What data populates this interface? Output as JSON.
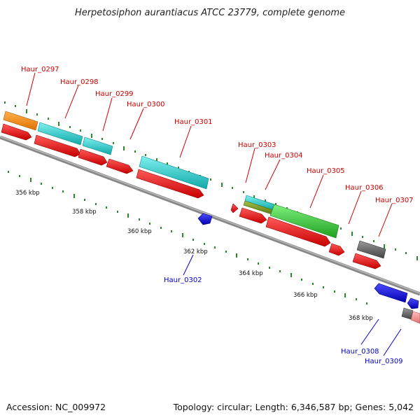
{
  "title": "Herpetosiphon aurantiacus ATCC 23779, complete genome",
  "footer": {
    "accession": "Accession: NC_009972",
    "info": "Topology: circular; Length: 6,346,587 bp; Genes: 5,042"
  },
  "scale_labels": [
    "356 kbp",
    "358 kbp",
    "360 kbp",
    "362 kbp",
    "364 kbp",
    "366 kbp",
    "368 kbp"
  ],
  "genes": {
    "forward_labels": [
      "Haur_0297",
      "Haur_0298",
      "Haur_0299",
      "Haur_0300",
      "Haur_0301",
      "Haur_0303",
      "Haur_0304",
      "Haur_0305",
      "Haur_0306",
      "Haur_0307"
    ],
    "reverse_labels": [
      "Haur_0302",
      "Haur_0308",
      "Haur_0309"
    ]
  },
  "colors": {
    "cds": "#ff0000",
    "reverse_cds": "#0000ff",
    "cyan_feature": "#1ec8c8",
    "green_feature": "#33cc33",
    "orange_feature": "#ff8c00",
    "gray_feature": "#666666",
    "pink_feature": "#ff9999",
    "olive_feature": "#7a9a2a",
    "backbone": "#888888",
    "ticks": "#2a8a2a",
    "forward_label": "#cc0000",
    "reverse_label": "#0000cc"
  }
}
